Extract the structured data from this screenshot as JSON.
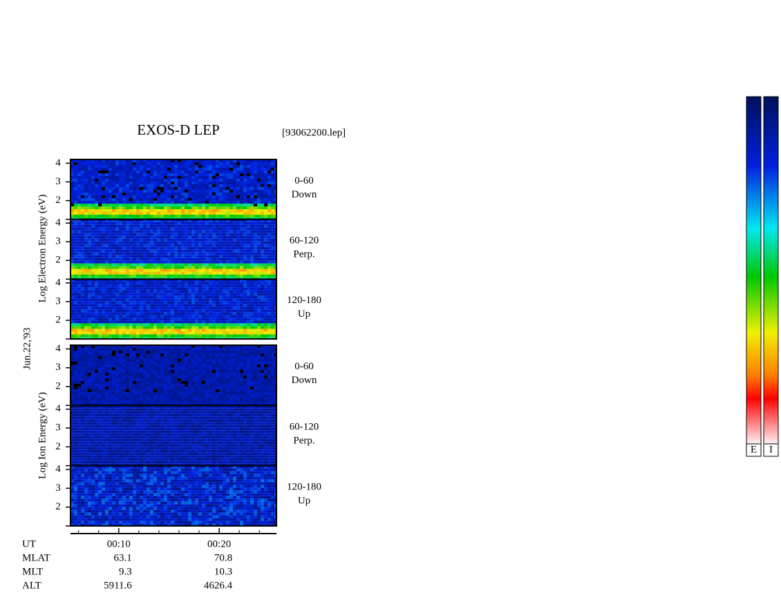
{
  "title": "EXOS-D LEP",
  "file": "[93062200.lep]",
  "date": "Jun.22,'93",
  "energy_axis": {
    "ylim": [
      1,
      4.2
    ],
    "yticks": [
      2,
      3,
      4
    ]
  },
  "electron": {
    "label": "Log  Electron  Energy (eV)",
    "panels": [
      {
        "angle": "0-60",
        "direction": "Down"
      },
      {
        "angle": "60-120",
        "direction": "Perp."
      },
      {
        "angle": "120-180",
        "direction": "Up"
      }
    ]
  },
  "ion": {
    "label": "Log  Ion  Energy (eV)",
    "panels": [
      {
        "angle": "0-60",
        "direction": "Down"
      },
      {
        "angle": "60-120",
        "direction": "Perp."
      },
      {
        "angle": "120-180",
        "direction": "Up"
      }
    ]
  },
  "time_axis": {
    "xlim": [
      5.2,
      25.7
    ],
    "xticks": [
      {
        "value": 10,
        "label": "00:10"
      },
      {
        "value": 20,
        "label": "00:20"
      }
    ]
  },
  "ephemeris": {
    "labels": [
      "UT",
      "MLAT",
      "MLT",
      "ALT"
    ],
    "MLAT": [
      63.1,
      70.8
    ],
    "MLT": [
      9.3,
      10.3
    ],
    "ALT": [
      5911.6,
      4626.4
    ]
  },
  "colorbars": [
    "E",
    "I"
  ]
}
